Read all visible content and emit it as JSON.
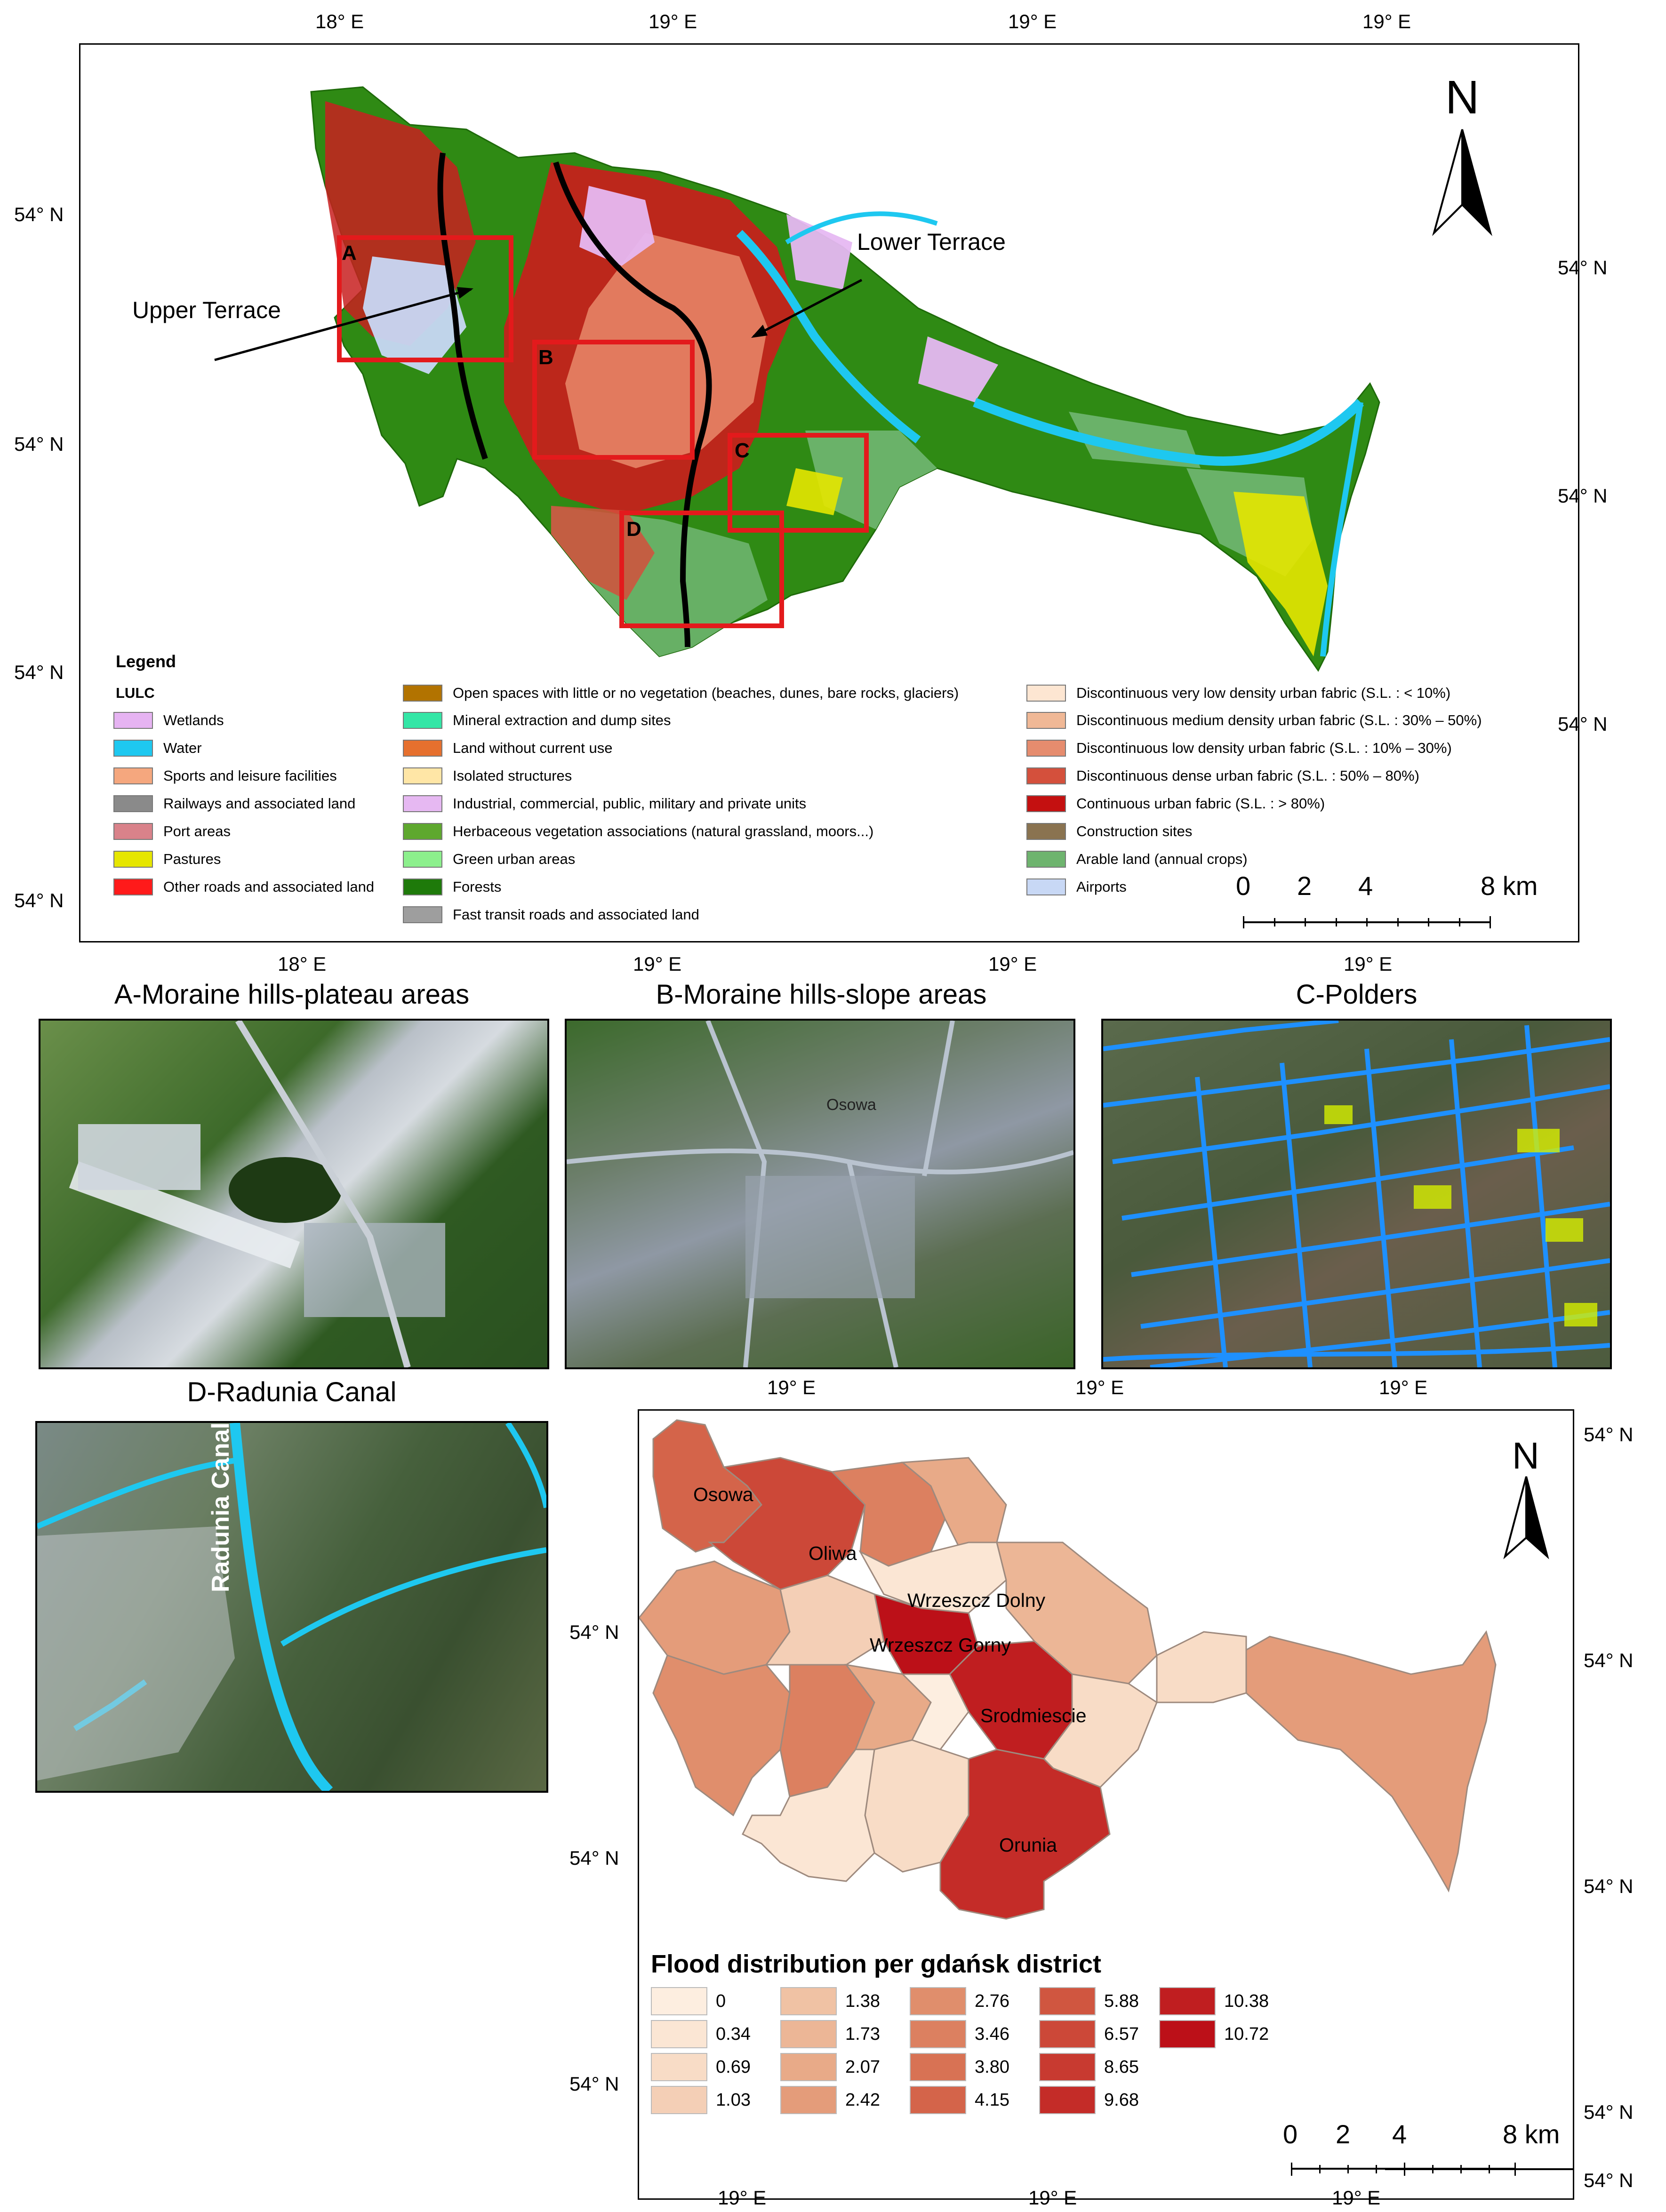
{
  "main_map": {
    "top_ticks": [
      "18° E",
      "19° E",
      "19° E",
      "19° E"
    ],
    "bottom_ticks": [
      "18° E",
      "19° E",
      "19° E",
      "19° E"
    ],
    "left_ticks": [
      "54° N",
      "54° N",
      "54° N",
      "54° N"
    ],
    "right_ticks": [
      "54° N",
      "54° N",
      "54° N"
    ],
    "north_label": "N",
    "upper_terrace": "Upper Terrace",
    "lower_terrace": "Lower Terrace",
    "boxes": [
      "A",
      "B",
      "C",
      "D"
    ],
    "scale": {
      "labels": [
        "0",
        "2",
        "4",
        "8 km"
      ]
    },
    "legend": {
      "title": "Legend",
      "subtitle": "LULC",
      "col1": [
        {
          "label": "Wetlands",
          "color": "#e6b3f2"
        },
        {
          "label": "Water",
          "color": "#1ec8f0"
        },
        {
          "label": "Sports and leisure facilities",
          "color": "#f5a77e"
        },
        {
          "label": "Railways and associated land",
          "color": "#8a8a8a"
        },
        {
          "label": "Port areas",
          "color": "#d9828a"
        },
        {
          "label": "Pastures",
          "color": "#e6e600"
        },
        {
          "label": "Other roads and associated land",
          "color": "#ff1a1a"
        }
      ],
      "col2": [
        {
          "label": "Open spaces with little or no vegetation (beaches, dunes, bare rocks, glaciers)",
          "color": "#b27300"
        },
        {
          "label": "Mineral extraction and dump sites",
          "color": "#33e6a6"
        },
        {
          "label": "Land without current use",
          "color": "#e6702e"
        },
        {
          "label": "Isolated structures",
          "color": "#ffe6a6"
        },
        {
          "label": "Industrial, commercial, public, military and private units",
          "color": "#e6b8f2"
        },
        {
          "label": "Herbaceous vegetation associations (natural grassland, moors...)",
          "color": "#5ea82e"
        },
        {
          "label": "Green urban areas",
          "color": "#8cf08c"
        },
        {
          "label": "Forests",
          "color": "#1e7a0a"
        },
        {
          "label": "Fast transit roads and associated land",
          "color": "#9e9e9e"
        }
      ],
      "col3": [
        {
          "label": "Discontinuous very low density urban fabric (S.L. : < 10%)",
          "color": "#fde6d2"
        },
        {
          "label": "Discontinuous medium density urban fabric (S.L. : 30% – 50%)",
          "color": "#f0b896"
        },
        {
          "label": "Discontinuous low density urban fabric (S.L. : 10% – 30%)",
          "color": "#e68c6e"
        },
        {
          "label": "Discontinuous dense urban fabric (S.L. : 50% –  80%)",
          "color": "#d4503c"
        },
        {
          "label": "Continuous urban fabric (S.L. : > 80%)",
          "color": "#c41010"
        },
        {
          "label": "Construction sites",
          "color": "#8a7350"
        },
        {
          "label": "Arable land (annual crops)",
          "color": "#6eb46e"
        },
        {
          "label": "Airports",
          "color": "#c8d8f5"
        }
      ]
    }
  },
  "insets": {
    "a": {
      "title": "A-Moraine hills-plateau areas"
    },
    "b": {
      "title": "B-Moraine hills-slope areas",
      "label": "Osowa"
    },
    "c": {
      "title": "C-Polders"
    },
    "d": {
      "title": "D-Radunia Canal",
      "label": "Radunia Canal"
    }
  },
  "flood_map": {
    "top_ticks": [
      "19° E",
      "19° E",
      "19° E"
    ],
    "bottom_ticks": [
      "19° E",
      "19° E",
      "19° E"
    ],
    "left_ticks": [
      "54° N",
      "54° N",
      "54° N"
    ],
    "right_ticks": [
      "54° N",
      "54° N",
      "54° N",
      "54° N",
      "54° N"
    ],
    "north_label": "N",
    "districts": [
      "Osowa",
      "Oliwa",
      "Wrzeszcz Dolny",
      "Wrzeszcz Gorny",
      "Srodmiescie",
      "Orunia"
    ],
    "legend_title": "Flood distribution per gdańsk district",
    "classes": [
      {
        "value": "0",
        "color": "#fdeee0"
      },
      {
        "value": "0.34",
        "color": "#fbe6d4"
      },
      {
        "value": "0.69",
        "color": "#f8dcc6"
      },
      {
        "value": "1.03",
        "color": "#f4cfb6"
      },
      {
        "value": "1.38",
        "color": "#f0c2a4"
      },
      {
        "value": "1.73",
        "color": "#ecb696"
      },
      {
        "value": "2.07",
        "color": "#e8aa88"
      },
      {
        "value": "2.42",
        "color": "#e49c7a"
      },
      {
        "value": "2.76",
        "color": "#e08e6c"
      },
      {
        "value": "3.46",
        "color": "#dc8060"
      },
      {
        "value": "3.80",
        "color": "#d87254"
      },
      {
        "value": "4.15",
        "color": "#d4644a"
      },
      {
        "value": "5.88",
        "color": "#d05640"
      },
      {
        "value": "6.57",
        "color": "#cc4838"
      },
      {
        "value": "8.65",
        "color": "#c83a30"
      },
      {
        "value": "9.68",
        "color": "#c42c28"
      },
      {
        "value": "10.38",
        "color": "#c01e20"
      },
      {
        "value": "10.72",
        "color": "#bc1018"
      }
    ],
    "scale": {
      "labels": [
        "0",
        "2",
        "4",
        "8 km"
      ]
    }
  }
}
